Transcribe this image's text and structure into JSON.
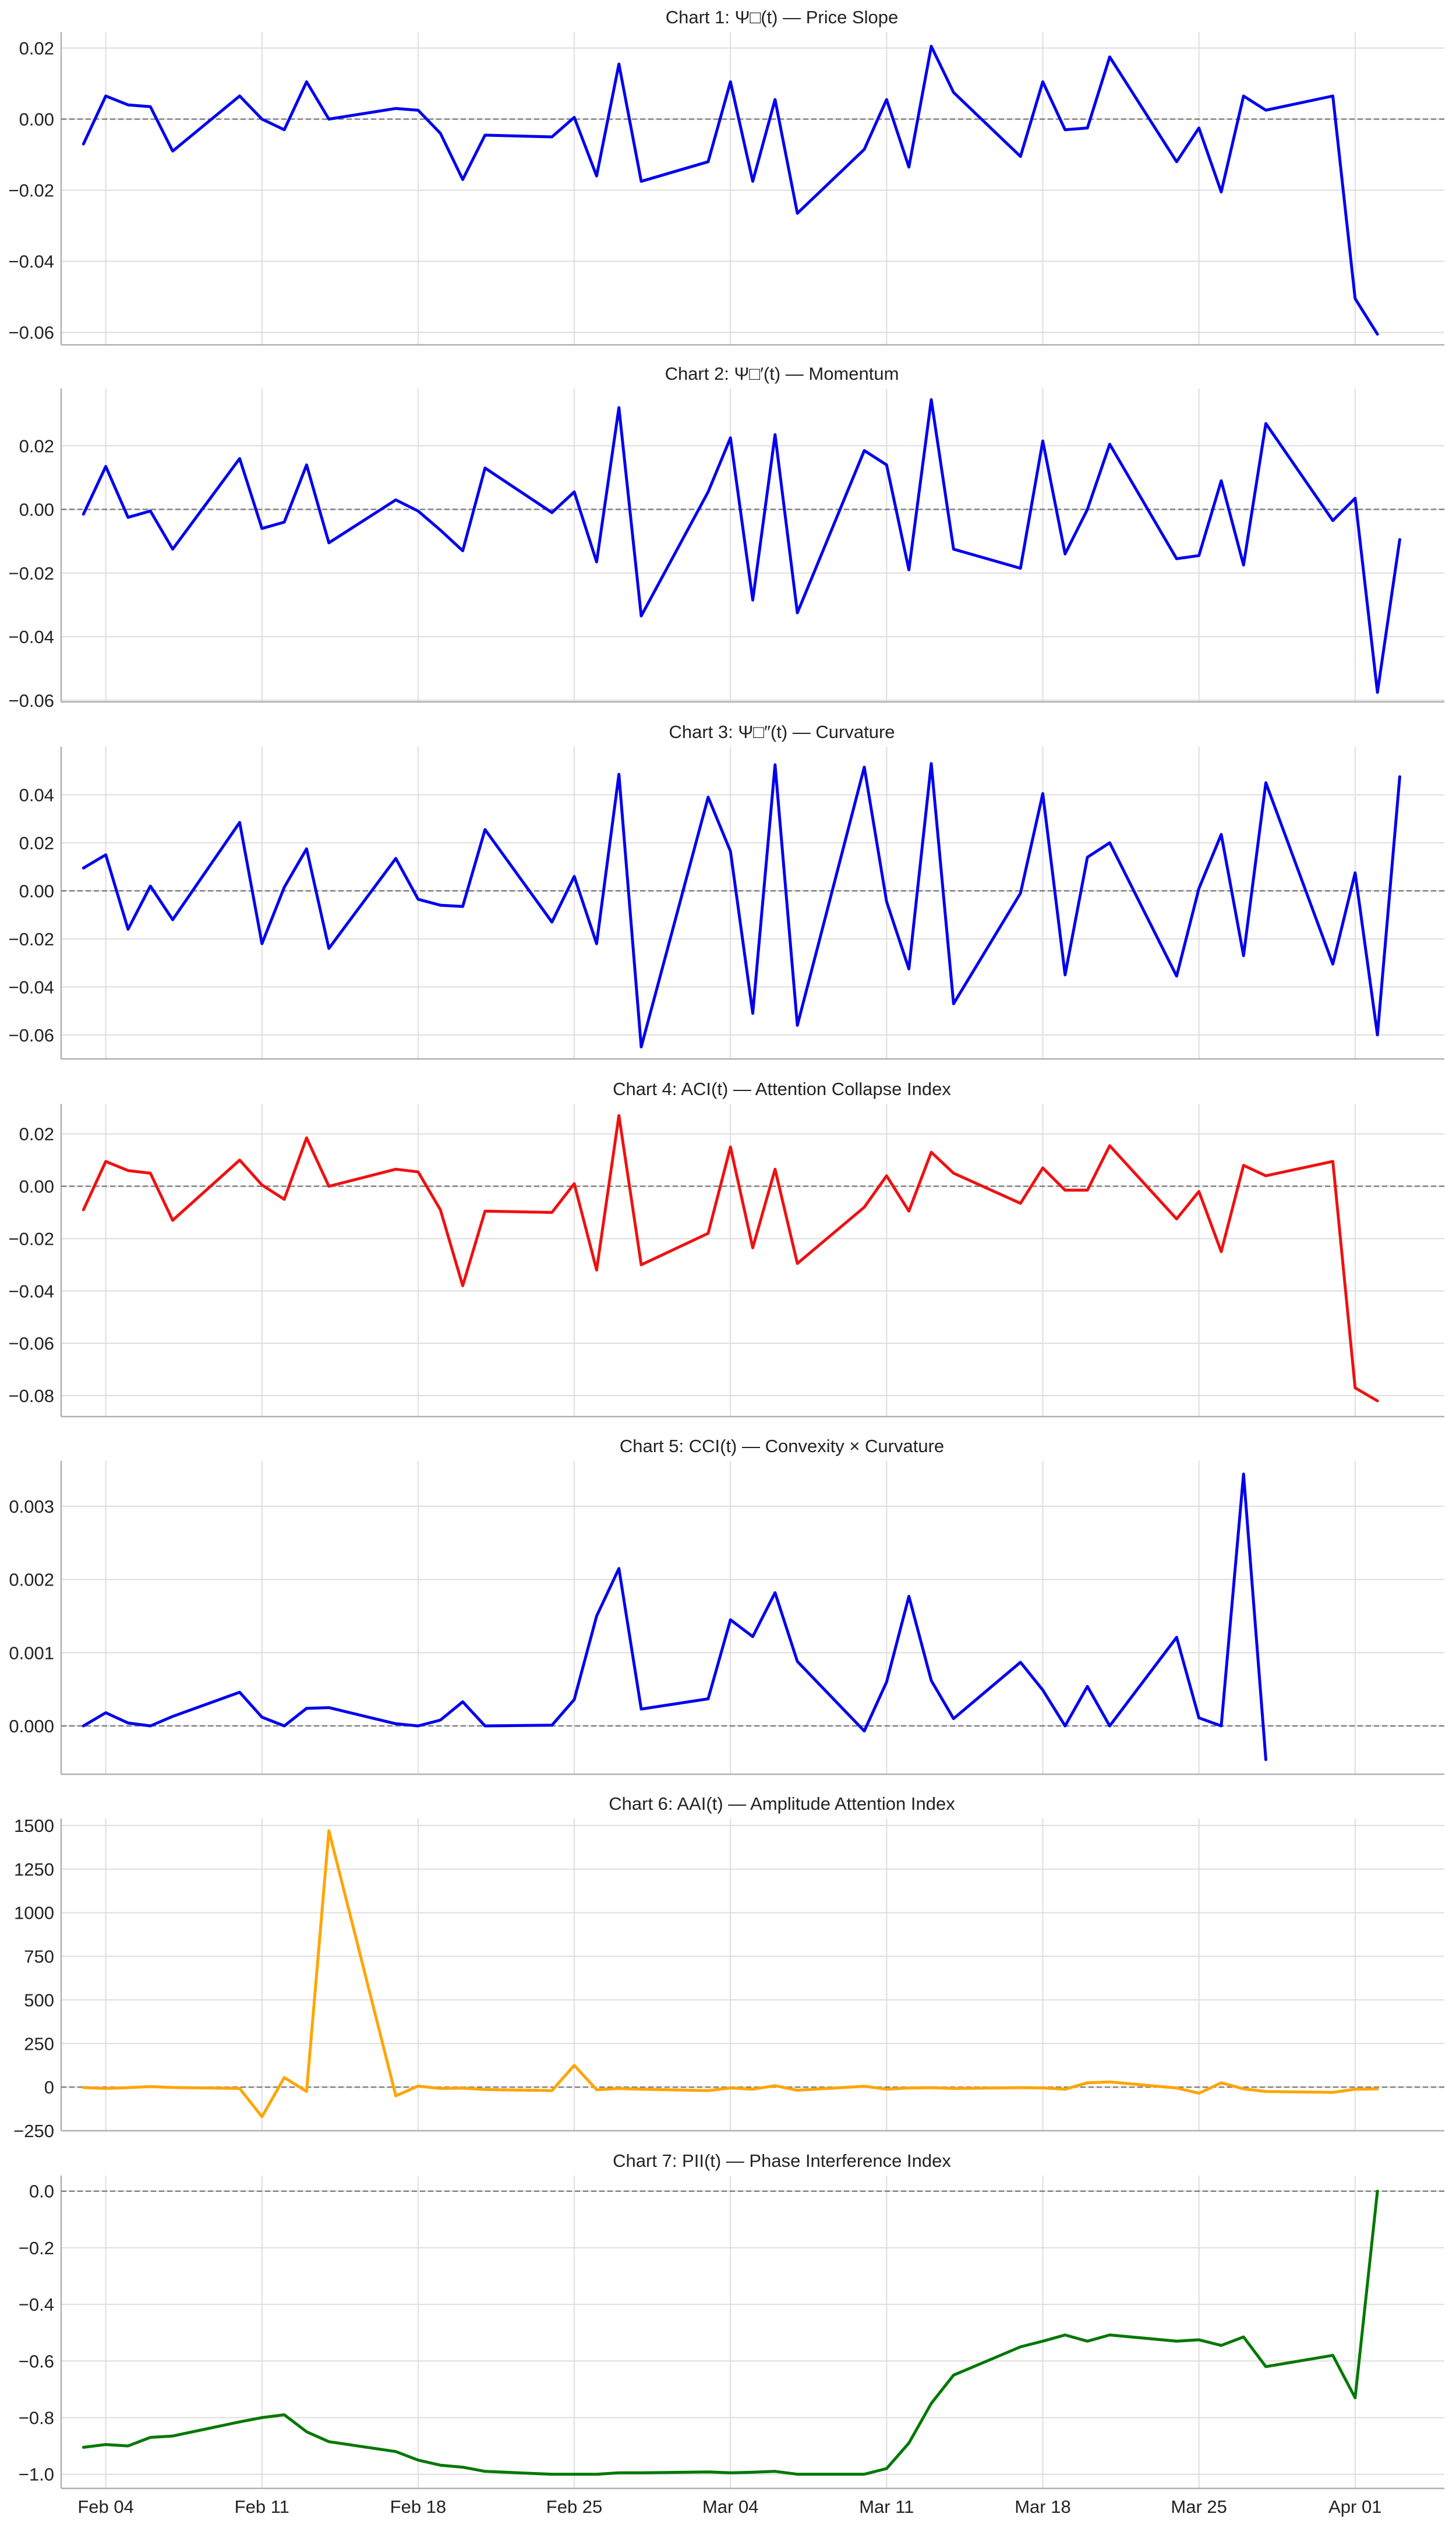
{
  "colors": {
    "blue": "#0000ee",
    "red": "#ee1111",
    "orange": "#ffa500",
    "green": "#007700",
    "grid": "#dedede",
    "axis": "#b0b0b0",
    "zero": "#808080",
    "text": "#222222"
  },
  "x_labels": [
    "Feb 04",
    "Feb 11",
    "Feb 18",
    "Feb 25",
    "Mar 04",
    "Mar 11",
    "Mar 18",
    "Mar 25",
    "Apr 01"
  ],
  "x_tick_days": [
    5,
    12,
    19,
    26,
    33,
    40,
    47,
    54,
    61
  ],
  "x_days": [
    4,
    5,
    6,
    7,
    8,
    11,
    12,
    13,
    14,
    15,
    18,
    19,
    20,
    21,
    22,
    25,
    26,
    27,
    28,
    29,
    32,
    33,
    34,
    35,
    36,
    39,
    40,
    41,
    42,
    43,
    46,
    47,
    48,
    49,
    50,
    53,
    54,
    55,
    56,
    57,
    60,
    61,
    62,
    63,
    64
  ],
  "chart_data": [
    {
      "type": "line",
      "title": "Chart 1: Ψ□(t) — Price Slope",
      "color": "blue",
      "ylim": [
        -0.0635,
        0.0245
      ],
      "yticks": [
        -0.06,
        -0.04,
        -0.02,
        0.0,
        0.02
      ],
      "ytick_labels": [
        "−0.06",
        "−0.04",
        "−0.02",
        "0.00",
        "0.02"
      ],
      "values": [
        -0.007,
        0.0065,
        0.004,
        0.0035,
        -0.009,
        0.0065,
        0.0,
        -0.003,
        0.0105,
        0.0,
        0.003,
        0.0025,
        -0.004,
        -0.017,
        -0.0045,
        -0.005,
        0.0005,
        -0.016,
        0.0155,
        -0.0175,
        -0.012,
        0.0105,
        -0.0175,
        0.0055,
        -0.0265,
        -0.0085,
        0.0055,
        -0.0135,
        0.0205,
        0.0075,
        -0.0105,
        0.0105,
        -0.003,
        -0.0025,
        0.0175,
        -0.012,
        -0.0025,
        -0.0205,
        0.0065,
        0.0025,
        0.0065,
        -0.0505,
        -0.0605
      ]
    },
    {
      "type": "line",
      "title": "Chart 2: Ψ□′(t) — Momentum",
      "color": "blue",
      "ylim": [
        -0.0605,
        0.038
      ],
      "yticks": [
        -0.06,
        -0.04,
        -0.02,
        0.0,
        0.02
      ],
      "ytick_labels": [
        "−0.06",
        "−0.04",
        "−0.02",
        "0.00",
        "0.02"
      ],
      "values": [
        -0.0015,
        0.0135,
        -0.0025,
        -0.0005,
        -0.0125,
        0.016,
        -0.006,
        -0.004,
        0.014,
        -0.0105,
        0.003,
        -0.0005,
        -0.0065,
        -0.013,
        0.013,
        -0.001,
        0.0055,
        -0.0165,
        0.032,
        -0.0335,
        0.0055,
        0.0225,
        -0.0285,
        0.0235,
        -0.0325,
        0.0185,
        0.014,
        -0.019,
        0.0345,
        -0.0125,
        -0.0185,
        0.0215,
        -0.014,
        0.0,
        0.0205,
        -0.0155,
        -0.0145,
        0.009,
        -0.0175,
        0.027,
        -0.0035,
        0.0035,
        -0.0575,
        -0.0095
      ]
    },
    {
      "type": "line",
      "title": "Chart 3: Ψ□″(t) — Curvature",
      "color": "blue",
      "ylim": [
        -0.07,
        0.06
      ],
      "yticks": [
        -0.06,
        -0.04,
        -0.02,
        0.0,
        0.02,
        0.04
      ],
      "ytick_labels": [
        "−0.06",
        "−0.04",
        "−0.02",
        "0.00",
        "0.02",
        "0.04"
      ],
      "values": [
        0.0095,
        0.015,
        -0.016,
        0.002,
        -0.012,
        0.0285,
        -0.022,
        0.0015,
        0.0175,
        -0.024,
        0.0135,
        -0.0035,
        -0.006,
        -0.0065,
        0.0255,
        -0.013,
        0.006,
        -0.022,
        0.0485,
        -0.065,
        0.039,
        0.0165,
        -0.051,
        0.0525,
        -0.056,
        0.0515,
        -0.0045,
        -0.0325,
        0.053,
        -0.047,
        -0.001,
        0.0405,
        -0.035,
        0.014,
        0.02,
        -0.0355,
        0.001,
        0.0235,
        -0.027,
        0.045,
        -0.0305,
        0.0075,
        -0.06,
        0.0475
      ]
    },
    {
      "type": "line",
      "title": "Chart 4: ACI(t) — Attention Collapse Index",
      "color": "red",
      "ylim": [
        -0.088,
        0.0315
      ],
      "yticks": [
        -0.08,
        -0.06,
        -0.04,
        -0.02,
        0.0,
        0.02
      ],
      "ytick_labels": [
        "−0.08",
        "−0.06",
        "−0.04",
        "−0.02",
        "0.00",
        "0.02"
      ],
      "values": [
        -0.009,
        0.0095,
        0.006,
        0.005,
        -0.013,
        0.01,
        0.0005,
        -0.005,
        0.0185,
        0.0,
        0.0065,
        0.0055,
        -0.009,
        -0.038,
        -0.0095,
        -0.01,
        0.001,
        -0.032,
        0.027,
        -0.03,
        -0.018,
        0.015,
        -0.0235,
        0.0065,
        -0.0295,
        -0.008,
        0.004,
        -0.0095,
        0.013,
        0.005,
        -0.0065,
        0.007,
        -0.0015,
        -0.0015,
        0.0155,
        -0.0125,
        -0.002,
        -0.025,
        0.008,
        0.004,
        0.0095,
        -0.077,
        -0.082
      ]
    },
    {
      "type": "line",
      "title": "Chart 5: CCI(t) — Convexity × Curvature",
      "color": "blue",
      "ylim": [
        -0.00066,
        0.00362
      ],
      "yticks": [
        0.0,
        0.001,
        0.002,
        0.003
      ],
      "ytick_labels": [
        "0.000",
        "0.001",
        "0.002",
        "0.003"
      ],
      "values": [
        0.0,
        0.00018,
        4e-05,
        0.0,
        0.00013,
        0.00046,
        0.00012,
        0.0,
        0.00024,
        0.00025,
        3e-05,
        0.0,
        8e-05,
        0.00033,
        0.0,
        1e-05,
        0.00036,
        0.0015,
        0.00215,
        0.00023,
        0.00037,
        0.00145,
        0.00122,
        0.00182,
        0.00088,
        -7e-05,
        0.0006,
        0.00177,
        0.00062,
        0.0001,
        0.00087,
        0.00049,
        0.0,
        0.00054,
        0.0,
        0.00121,
        0.00011,
        0.0,
        0.00344,
        -0.00046
      ]
    },
    {
      "type": "line",
      "title": "Chart 6: AAI(t) — Amplitude Attention Index",
      "color": "orange",
      "ylim": [
        -250,
        1540
      ],
      "yticks": [
        -250,
        0,
        250,
        500,
        750,
        1000,
        1250,
        1500
      ],
      "ytick_labels": [
        "−250",
        "0",
        "250",
        "500",
        "750",
        "1000",
        "1250",
        "1500"
      ],
      "values": [
        -2,
        -8,
        -3,
        3,
        -2,
        -8,
        -170,
        55,
        -25,
        1470,
        -50,
        6,
        -8,
        -6,
        -14,
        -20,
        125,
        -15,
        -8,
        -12,
        -20,
        -5,
        -12,
        8,
        -18,
        5,
        -12,
        -5,
        -3,
        -8,
        -3,
        -5,
        -12,
        25,
        30,
        -5,
        -35,
        25,
        -10,
        -25,
        -30,
        -12,
        -10
      ]
    },
    {
      "type": "line",
      "title": "Chart 7: PII(t) — Phase Interference Index",
      "color": "green",
      "ylim": [
        -1.05,
        0.055
      ],
      "yticks": [
        -1.0,
        -0.8,
        -0.6,
        -0.4,
        -0.2,
        0.0
      ],
      "ytick_labels": [
        "−1.0",
        "−0.8",
        "−0.6",
        "−0.4",
        "−0.2",
        "0.0"
      ],
      "values": [
        -0.905,
        -0.895,
        -0.9,
        -0.87,
        -0.865,
        -0.815,
        -0.8,
        -0.79,
        -0.85,
        -0.885,
        -0.92,
        -0.95,
        -0.968,
        -0.975,
        -0.99,
        -1.0,
        -1.0,
        -1.0,
        -0.995,
        -0.995,
        -0.992,
        -0.995,
        -0.993,
        -0.99,
        -1.0,
        -1.0,
        -0.98,
        -0.89,
        -0.75,
        -0.65,
        -0.55,
        -0.53,
        -0.508,
        -0.53,
        -0.508,
        -0.53,
        -0.525,
        -0.545,
        -0.515,
        -0.62,
        -0.58,
        -0.73,
        0.0
      ]
    }
  ]
}
